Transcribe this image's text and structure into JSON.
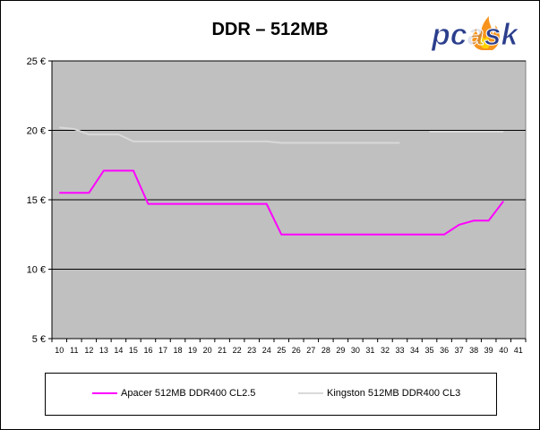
{
  "chart_data": {
    "type": "line",
    "title": "DDR – 512MB",
    "xlabel": "",
    "ylabel": "",
    "x": [
      10,
      11,
      12,
      13,
      14,
      15,
      16,
      17,
      18,
      19,
      20,
      21,
      22,
      23,
      24,
      25,
      26,
      27,
      28,
      29,
      30,
      31,
      32,
      33,
      34,
      35,
      36,
      37,
      38,
      39,
      40,
      41
    ],
    "xlim": [
      10,
      41
    ],
    "ylim": [
      5,
      25
    ],
    "y_ticks": [
      "5 €",
      "10 €",
      "15 €",
      "20 €",
      "25 €"
    ],
    "y_tick_values": [
      5,
      10,
      15,
      20,
      25
    ],
    "grid": "horizontal",
    "legend_position": "bottom",
    "series": [
      {
        "name": "Apacer 512MB DDR400 CL2.5",
        "color": "#ff00ff",
        "values": [
          15.5,
          15.5,
          15.5,
          17.1,
          17.1,
          17.1,
          14.7,
          14.7,
          14.7,
          14.7,
          14.7,
          14.7,
          14.7,
          14.7,
          14.7,
          12.5,
          12.5,
          12.5,
          12.5,
          12.5,
          12.5,
          12.5,
          12.5,
          12.5,
          12.5,
          12.5,
          12.5,
          13.2,
          13.5,
          13.5,
          14.9,
          null
        ]
      },
      {
        "name": "Kingston 512MB DDR400 CL3",
        "color": "#d9d9d9",
        "values": [
          20.2,
          20.1,
          19.7,
          19.7,
          19.7,
          19.2,
          19.2,
          19.2,
          19.2,
          19.2,
          19.2,
          19.2,
          19.2,
          19.2,
          19.2,
          19.1,
          19.1,
          19.1,
          19.1,
          19.1,
          19.1,
          19.1,
          19.1,
          19.1,
          null,
          19.9,
          19.9,
          19.9,
          19.9,
          19.9,
          19.9,
          null
        ]
      }
    ]
  },
  "logo": {
    "text": "pcask",
    "color": "#2b3e8c",
    "accent": "#f7941d"
  },
  "colors": {
    "plot_background": "#c0c0c0",
    "gridline": "#000000"
  }
}
